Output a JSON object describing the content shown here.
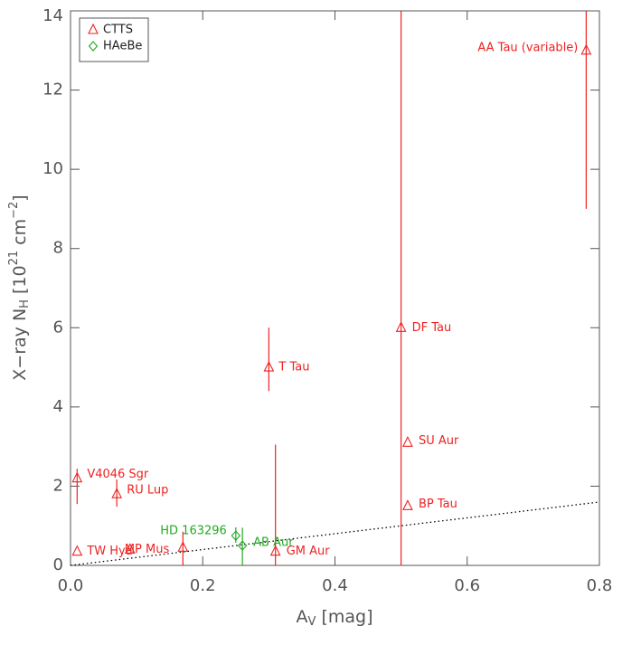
{
  "chart_data": {
    "type": "scatter",
    "xlabel": {
      "main": "A",
      "sub": "V",
      "rest": " [mag]"
    },
    "ylabel": {
      "main": "X−ray N",
      "sub": "H",
      "a": " [10",
      "sup1": "21",
      "b": " cm",
      "sup2": "−2",
      "c": "]"
    },
    "xlim": [
      0,
      0.8
    ],
    "ylim": [
      0,
      14
    ],
    "xticks": [
      {
        "value": 0,
        "label": "0.0"
      },
      0.2,
      0.4,
      0.6,
      0.8
    ],
    "yticks": [
      0,
      2,
      4,
      6,
      8,
      10,
      12,
      14
    ],
    "legend": "top-left",
    "series": [
      {
        "name": "CTTS",
        "color": "#ee2222",
        "marker": "triangle",
        "labels": [
          "TW Hya",
          "V4046 Sgr",
          "RU Lup",
          "MP Mus",
          null,
          "T Tau",
          "GM Aur",
          "DF Tau",
          "SU Aur",
          "BP Tau",
          "AA Tau (variable)"
        ],
        "x": [
          0.01,
          0.01,
          0.07,
          0.09,
          0.17,
          0.3,
          0.31,
          0.5,
          0.51,
          0.51,
          0.78
        ],
        "values": [
          0.35,
          2.2,
          1.8,
          0.4,
          0.45,
          5.0,
          0.35,
          6.0,
          3.1,
          1.5,
          13.0
        ],
        "ylow": [
          null,
          1.55,
          1.48,
          null,
          0,
          4.4,
          0,
          0,
          null,
          null,
          9.0
        ],
        "yhigh": [
          null,
          2.44,
          2.17,
          null,
          0.85,
          6.0,
          3.05,
          14,
          null,
          null,
          14
        ]
      },
      {
        "name": "HAeBe",
        "color": "#22aa22",
        "marker": "diamond",
        "labels": [
          "HD 163296",
          "AB Aur"
        ],
        "x": [
          0.25,
          0.26
        ],
        "values": [
          0.75,
          0.5
        ],
        "ylow": [
          0.57,
          0
        ],
        "yhigh": [
          0.96,
          0.95
        ]
      }
    ],
    "lines": [
      {
        "x": [
          0,
          0.8
        ],
        "values": [
          0,
          1.6
        ],
        "style": "dotted",
        "color": "#000000"
      }
    ]
  }
}
